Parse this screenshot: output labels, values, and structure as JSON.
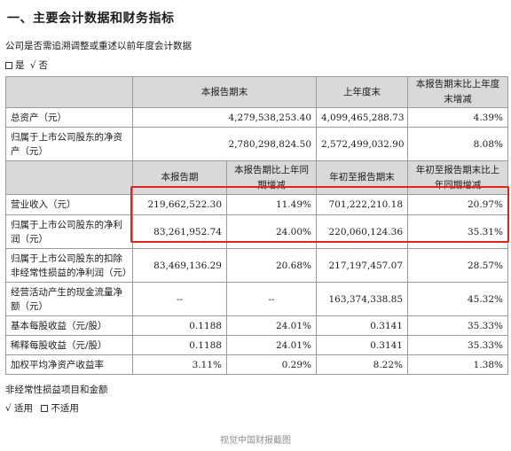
{
  "heading": "一、主要会计数据和财务指标",
  "restate_question": "公司是否需追溯调整或重述以前年度会计数据",
  "restate_options": {
    "yes": "是",
    "no": "否",
    "selected_mark": "√"
  },
  "table": {
    "header1": {
      "c1": "本报告期末",
      "c2": "上年度末",
      "c3": "本报告期末比上年度末增减"
    },
    "rows1": [
      {
        "label": "总资产（元）",
        "v1": "4,279,538,253.40",
        "v2": "4,099,465,288.73",
        "v3": "4.39%"
      },
      {
        "label": "归属于上市公司股东的净资产（元）",
        "v1": "2,780,298,824.50",
        "v2": "2,572,499,032.90",
        "v3": "8.08%"
      }
    ],
    "header2": {
      "c1": "本报告期",
      "c2": "本报告期比上年同期增减",
      "c3": "年初至报告期末",
      "c4": "年初至报告期末比上年同期增减"
    },
    "rows2": [
      {
        "label": "营业收入（元）",
        "v1": "219,662,522.30",
        "v2": "11.49%",
        "v3": "701,222,210.18",
        "v4": "20.97%"
      },
      {
        "label": "归属于上市公司股东的净利润（元）",
        "v1": "83,261,952.74",
        "v2": "24.00%",
        "v3": "220,060,124.36",
        "v4": "35.31%"
      },
      {
        "label": "归属于上市公司股东的扣除非经常性损益的净利润（元）",
        "v1": "83,469,136.29",
        "v2": "20.68%",
        "v3": "217,197,457.07",
        "v4": "28.57%"
      },
      {
        "label": "经营活动产生的现金流量净额（元）",
        "v1": "--",
        "v2": "--",
        "v3": "163,374,338.85",
        "v4": "45.32%"
      },
      {
        "label": "基本每股收益（元/股）",
        "v1": "0.1188",
        "v2": "24.01%",
        "v3": "0.3141",
        "v4": "35.33%"
      },
      {
        "label": "稀释每股收益（元/股）",
        "v1": "0.1188",
        "v2": "24.01%",
        "v3": "0.3141",
        "v4": "35.33%"
      },
      {
        "label": "加权平均净资产收益率",
        "v1": "3.11%",
        "v2": "0.29%",
        "v3": "8.22%",
        "v4": "1.38%"
      }
    ]
  },
  "nonrecurring_title": "非经常性损益项目和金额",
  "applicable_options": {
    "applicable": "适用",
    "not_applicable": "不适用",
    "selected_mark": "√"
  },
  "highlight_color": "#e2231a",
  "caption": "视觉中国财报截图"
}
